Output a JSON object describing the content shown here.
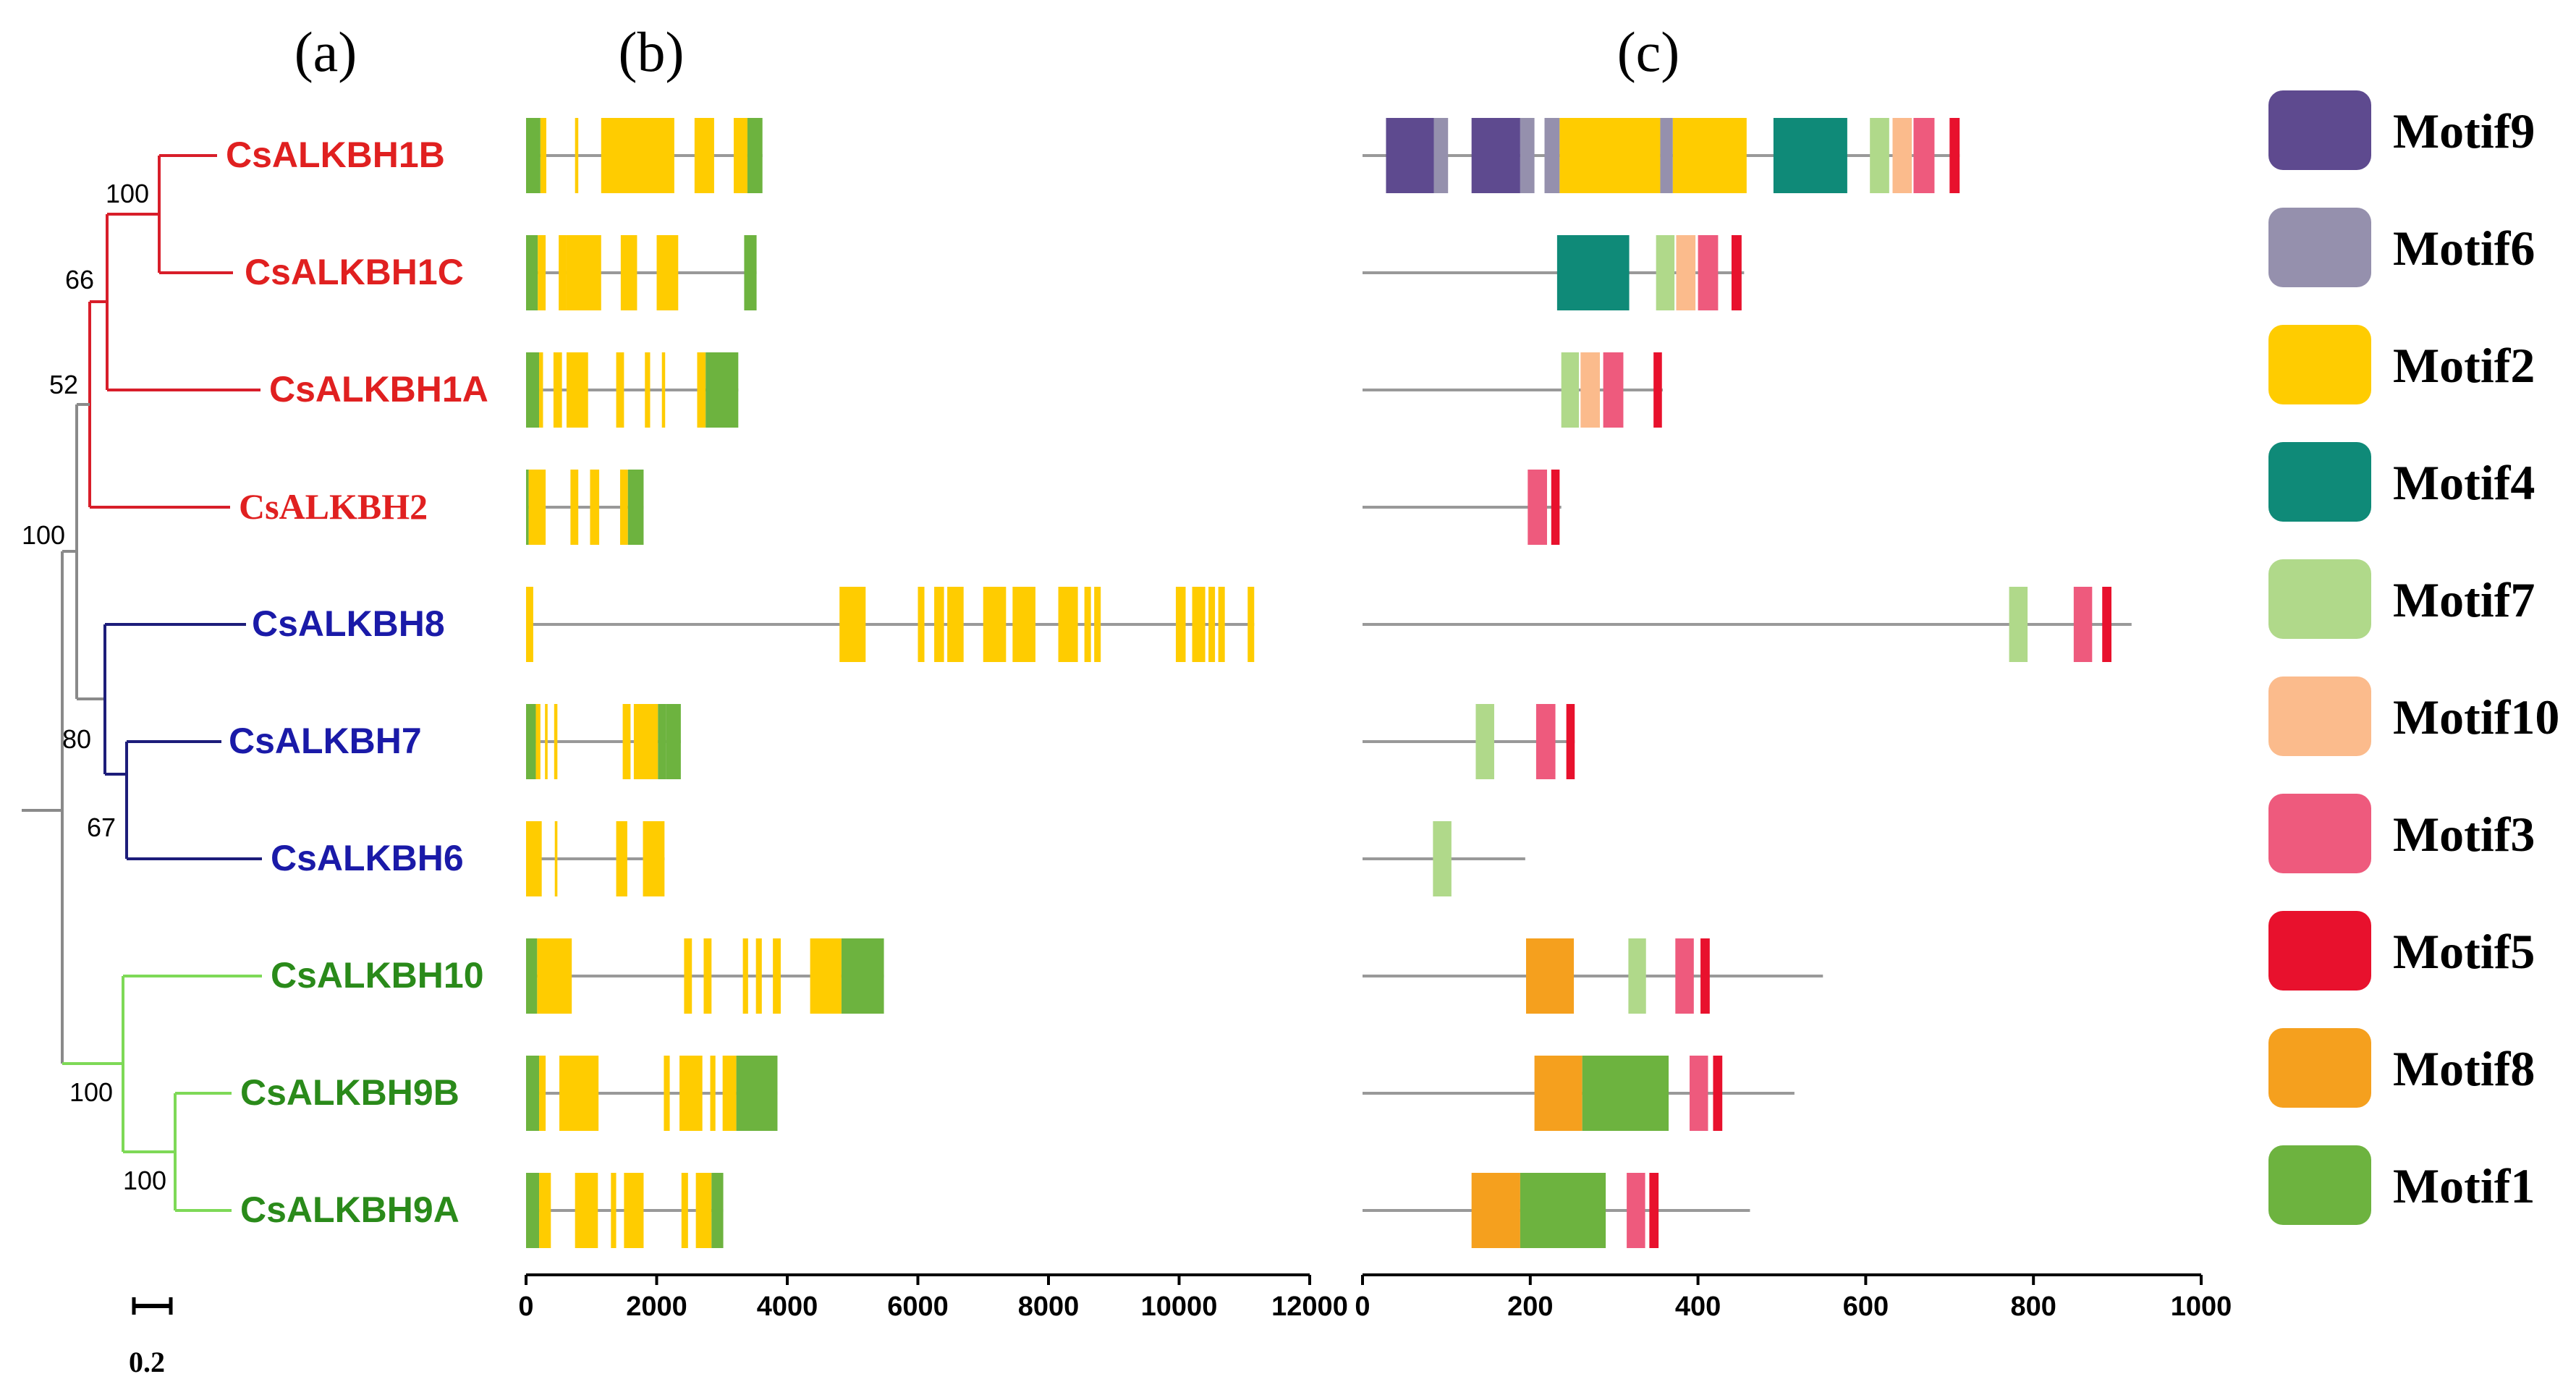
{
  "panels": {
    "a": "(a)",
    "b": "(b)",
    "c": "(c)"
  },
  "colors": {
    "red": "#e02020",
    "blue": "#1a1aa8",
    "green": "#2a8a1a",
    "tree_red": "#d81e2a",
    "tree_blue": "#1d1d7a",
    "tree_green": "#7ed957",
    "tree_gray": "#8a8a8a",
    "exon": "#ffcc00",
    "utr": "#6db33f",
    "intron": "#999999",
    "motifs": {
      "Motif9": "#5e4a8f",
      "Motif6": "#9590ad",
      "Motif2": "#ffcc00",
      "Motif4": "#0f8a78",
      "Motif7": "#b0d98a",
      "Motif10": "#fbbb8c",
      "Motif3": "#ee5a7d",
      "Motif5": "#e8112d",
      "Motif8": "#f5a01e",
      "Motif1": "#6db33f"
    }
  },
  "genes": [
    {
      "name": "CsALKBH1B",
      "group": "red"
    },
    {
      "name": "CsALKBH1C",
      "group": "red"
    },
    {
      "name": "CsALKBH1A",
      "group": "red"
    },
    {
      "name": "CsALKBH2",
      "group": "red"
    },
    {
      "name": "CsALKBH8",
      "group": "blue"
    },
    {
      "name": "CsALKBH7",
      "group": "blue"
    },
    {
      "name": "CsALKBH6",
      "group": "blue"
    },
    {
      "name": "CsALKBH10",
      "group": "green"
    },
    {
      "name": "CsALKBH9B",
      "group": "green"
    },
    {
      "name": "CsALKBH9A",
      "group": "green"
    }
  ],
  "bootstrap": [
    "100",
    "66",
    "52",
    "100",
    "80",
    "67",
    "100",
    "100"
  ],
  "scale_bar": "0.2",
  "gene_structure": {
    "axis_max": 12000,
    "ticks": [
      "0",
      "2000",
      "4000",
      "6000",
      "8000",
      "10000",
      "12000"
    ],
    "tick_values": [
      0,
      2000,
      4000,
      6000,
      8000,
      10000,
      12000
    ],
    "rows": [
      {
        "length": 3620,
        "segs": [
          [
            0,
            220,
            "utr"
          ],
          [
            220,
            310,
            "exon"
          ],
          [
            750,
            800,
            "exon"
          ],
          [
            1150,
            2270,
            "exon"
          ],
          [
            2580,
            2880,
            "exon"
          ],
          [
            3180,
            3390,
            "exon"
          ],
          [
            3390,
            3620,
            "utr"
          ]
        ]
      },
      {
        "length": 3530,
        "segs": [
          [
            0,
            180,
            "utr"
          ],
          [
            180,
            300,
            "exon"
          ],
          [
            500,
            620,
            "exon"
          ],
          [
            620,
            1150,
            "exon"
          ],
          [
            1450,
            1700,
            "exon"
          ],
          [
            2000,
            2330,
            "exon"
          ],
          [
            3340,
            3530,
            "utr"
          ]
        ]
      },
      {
        "length": 3250,
        "segs": [
          [
            0,
            200,
            "utr"
          ],
          [
            200,
            260,
            "exon"
          ],
          [
            420,
            550,
            "exon"
          ],
          [
            620,
            950,
            "exon"
          ],
          [
            1380,
            1500,
            "exon"
          ],
          [
            1820,
            1900,
            "exon"
          ],
          [
            2080,
            2130,
            "exon"
          ],
          [
            2620,
            2750,
            "exon"
          ],
          [
            2750,
            3250,
            "utr"
          ]
        ]
      },
      {
        "length": 1800,
        "segs": [
          [
            0,
            40,
            "utr"
          ],
          [
            40,
            300,
            "exon"
          ],
          [
            680,
            800,
            "exon"
          ],
          [
            980,
            1120,
            "exon"
          ],
          [
            1440,
            1560,
            "exon"
          ],
          [
            1560,
            1800,
            "utr"
          ]
        ]
      },
      {
        "length": 11150,
        "segs": [
          [
            0,
            110,
            "exon"
          ],
          [
            4800,
            5200,
            "exon"
          ],
          [
            6000,
            6100,
            "exon"
          ],
          [
            6250,
            6400,
            "exon"
          ],
          [
            6450,
            6700,
            "exon"
          ],
          [
            7000,
            7350,
            "exon"
          ],
          [
            7450,
            7800,
            "exon"
          ],
          [
            8150,
            8450,
            "exon"
          ],
          [
            8550,
            8650,
            "exon"
          ],
          [
            8700,
            8800,
            "exon"
          ],
          [
            9950,
            10100,
            "exon"
          ],
          [
            10200,
            10400,
            "exon"
          ],
          [
            10450,
            10550,
            "exon"
          ],
          [
            10600,
            10700,
            "exon"
          ],
          [
            11050,
            11150,
            "exon"
          ]
        ]
      },
      {
        "length": 2370,
        "segs": [
          [
            0,
            150,
            "utr"
          ],
          [
            150,
            220,
            "exon"
          ],
          [
            290,
            330,
            "exon"
          ],
          [
            430,
            480,
            "exon"
          ],
          [
            1480,
            1600,
            "exon"
          ],
          [
            1650,
            2020,
            "exon"
          ],
          [
            2020,
            2140,
            "utr"
          ],
          [
            2140,
            2370,
            "utr"
          ]
        ]
      },
      {
        "length": 2120,
        "segs": [
          [
            0,
            240,
            "exon"
          ],
          [
            440,
            480,
            "exon"
          ],
          [
            1380,
            1550,
            "exon"
          ],
          [
            1790,
            2120,
            "exon"
          ]
        ]
      },
      {
        "length": 5480,
        "segs": [
          [
            0,
            170,
            "utr"
          ],
          [
            170,
            700,
            "exon"
          ],
          [
            2420,
            2540,
            "exon"
          ],
          [
            2720,
            2840,
            "exon"
          ],
          [
            3320,
            3400,
            "exon"
          ],
          [
            3520,
            3610,
            "exon"
          ],
          [
            3780,
            3900,
            "exon"
          ],
          [
            4350,
            4830,
            "exon"
          ],
          [
            4830,
            5480,
            "utr"
          ]
        ]
      },
      {
        "length": 3850,
        "segs": [
          [
            0,
            200,
            "utr"
          ],
          [
            200,
            300,
            "exon"
          ],
          [
            510,
            1110,
            "exon"
          ],
          [
            2110,
            2200,
            "exon"
          ],
          [
            2350,
            2700,
            "exon"
          ],
          [
            2820,
            2900,
            "exon"
          ],
          [
            3010,
            3220,
            "exon"
          ],
          [
            3220,
            3850,
            "utr"
          ]
        ]
      },
      {
        "length": 3020,
        "segs": [
          [
            0,
            200,
            "utr"
          ],
          [
            200,
            380,
            "exon"
          ],
          [
            750,
            1100,
            "exon"
          ],
          [
            1300,
            1380,
            "exon"
          ],
          [
            1500,
            1800,
            "exon"
          ],
          [
            2380,
            2480,
            "exon"
          ],
          [
            2600,
            2840,
            "exon"
          ],
          [
            2840,
            3020,
            "utr"
          ]
        ]
      }
    ]
  },
  "motif_structure": {
    "axis_max": 1000,
    "ticks": [
      "0",
      "200",
      "400",
      "600",
      "800",
      "1000"
    ],
    "tick_values": [
      0,
      200,
      400,
      600,
      800,
      1000
    ],
    "rows": [
      {
        "length": 712,
        "motifs": [
          [
            28,
            85,
            "Motif9"
          ],
          [
            85,
            102,
            "Motif6"
          ],
          [
            130,
            188,
            "Motif9"
          ],
          [
            188,
            205,
            "Motif6"
          ],
          [
            217,
            235,
            "Motif6"
          ],
          [
            235,
            355,
            "Motif2"
          ],
          [
            355,
            370,
            "Motif6"
          ],
          [
            370,
            458,
            "Motif2"
          ],
          [
            490,
            578,
            "Motif4"
          ],
          [
            605,
            628,
            "Motif7"
          ],
          [
            632,
            655,
            "Motif10"
          ],
          [
            657,
            682,
            "Motif3"
          ],
          [
            700,
            712,
            "Motif5"
          ]
        ]
      },
      {
        "length": 455,
        "motifs": [
          [
            232,
            318,
            "Motif4"
          ],
          [
            350,
            372,
            "Motif7"
          ],
          [
            374,
            397,
            "Motif10"
          ],
          [
            400,
            424,
            "Motif3"
          ],
          [
            440,
            452,
            "Motif5"
          ]
        ]
      },
      {
        "length": 358,
        "motifs": [
          [
            237,
            258,
            "Motif7"
          ],
          [
            260,
            283,
            "Motif10"
          ],
          [
            287,
            311,
            "Motif3"
          ],
          [
            347,
            357,
            "Motif5"
          ]
        ]
      },
      {
        "length": 237,
        "motifs": [
          [
            197,
            220,
            "Motif3"
          ],
          [
            225,
            235,
            "Motif5"
          ]
        ]
      },
      {
        "length": 917,
        "motifs": [
          [
            771,
            793,
            "Motif7"
          ],
          [
            848,
            870,
            "Motif3"
          ],
          [
            882,
            893,
            "Motif5"
          ]
        ]
      },
      {
        "length": 253,
        "motifs": [
          [
            135,
            157,
            "Motif7"
          ],
          [
            207,
            230,
            "Motif3"
          ],
          [
            243,
            253,
            "Motif5"
          ]
        ]
      },
      {
        "length": 194,
        "motifs": [
          [
            84,
            106,
            "Motif7"
          ]
        ]
      },
      {
        "length": 549,
        "motifs": [
          [
            195,
            252,
            "Motif8"
          ],
          [
            317,
            338,
            "Motif7"
          ],
          [
            373,
            395,
            "Motif3"
          ],
          [
            403,
            414,
            "Motif5"
          ]
        ]
      },
      {
        "length": 515,
        "motifs": [
          [
            205,
            262,
            "Motif8"
          ],
          [
            262,
            365,
            "Motif1"
          ],
          [
            390,
            412,
            "Motif3"
          ],
          [
            418,
            429,
            "Motif5"
          ]
        ]
      },
      {
        "length": 462,
        "motifs": [
          [
            130,
            188,
            "Motif8"
          ],
          [
            188,
            290,
            "Motif1"
          ],
          [
            315,
            337,
            "Motif3"
          ],
          [
            342,
            353,
            "Motif5"
          ]
        ]
      }
    ]
  },
  "legend": [
    {
      "label": "Motif9",
      "key": "Motif9"
    },
    {
      "label": "Motif6",
      "key": "Motif6"
    },
    {
      "label": "Motif2",
      "key": "Motif2"
    },
    {
      "label": "Motif4",
      "key": "Motif4"
    },
    {
      "label": "Motif7",
      "key": "Motif7"
    },
    {
      "label": "Motif10",
      "key": "Motif10"
    },
    {
      "label": "Motif3",
      "key": "Motif3"
    },
    {
      "label": "Motif5",
      "key": "Motif5"
    },
    {
      "label": "Motif8",
      "key": "Motif8"
    },
    {
      "label": "Motif1",
      "key": "Motif1"
    }
  ]
}
